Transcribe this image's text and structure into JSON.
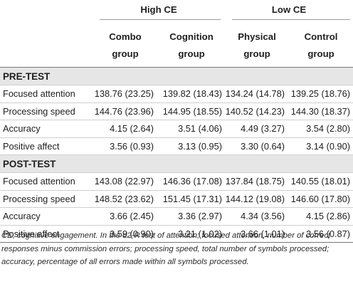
{
  "header": {
    "groups": [
      {
        "label": "High CE"
      },
      {
        "label": "Low CE"
      }
    ],
    "columns": [
      {
        "line1": "Combo",
        "line2": "group"
      },
      {
        "line1": "Cognition",
        "line2": "group"
      },
      {
        "line1": "Physical",
        "line2": "group"
      },
      {
        "line1": "Control",
        "line2": "group"
      }
    ]
  },
  "sections": [
    {
      "title": "PRE-TEST",
      "rows": [
        {
          "label": "Focused attention",
          "values": [
            "138.76 (23.25)",
            "139.82 (18.43)",
            "134.24 (14.78)",
            "139.25 (18.76)"
          ]
        },
        {
          "label": "Processing speed",
          "values": [
            "144.76 (23.96)",
            "144.95 (18.55)",
            "140.52 (14.23)",
            "144.30 (18.37)"
          ]
        },
        {
          "label": "Accuracy",
          "values": [
            "4.15 (2.64)",
            "3.51 (4.06)",
            "4.49 (3.27)",
            "3.54 (2.80)"
          ]
        },
        {
          "label": "Positive affect",
          "values": [
            "3.56 (0.93)",
            "3.13 (0.95)",
            "3.30 (0.64)",
            "3.14 (0.90)"
          ]
        }
      ]
    },
    {
      "title": "POST-TEST",
      "rows": [
        {
          "label": "Focused attention",
          "values": [
            "143.08 (22.97)",
            "146.36 (17.08)",
            "137.84 (18.75)",
            "140.55 (18.01)"
          ]
        },
        {
          "label": "Processing speed",
          "values": [
            "148.52 (23.62)",
            "151.45 (17.31)",
            "144.12 (19.08)",
            "146.60 (17.80)"
          ]
        },
        {
          "label": "Accuracy",
          "values": [
            "3.66 (2.45)",
            "3.36 (2.97)",
            "4.34 (3.56)",
            "4.15 (2.86)"
          ]
        },
        {
          "label": "Positive affect",
          "values": [
            "3.59 (0.90)",
            "3.21 (1.02)",
            "3.66 (1.01)",
            "3.56 (0.87)"
          ]
        }
      ]
    }
  ],
  "footnote": "CE, cognitive engagement. In the d2-R test of attention; focused attention, number of correct responses minus commission errors; processing speed, total number of symbols processed; accuracy, percentage of all errors made within all symbols processed."
}
